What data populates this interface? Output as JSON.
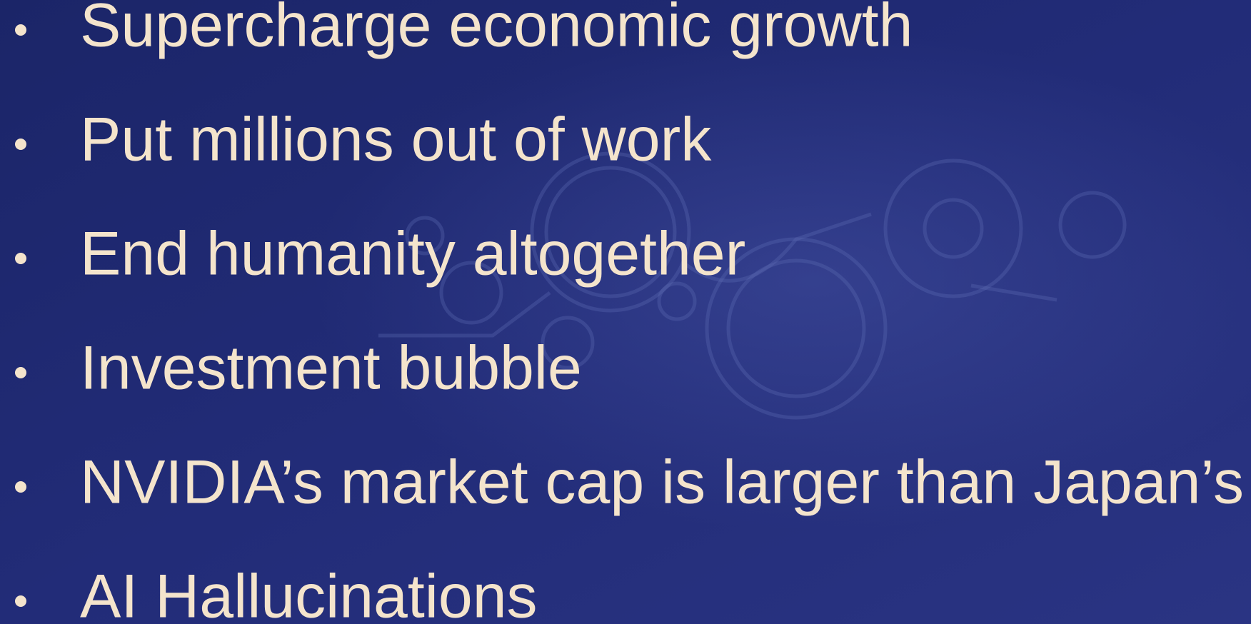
{
  "bullets": [
    "Supercharge economic growth",
    "Put millions out of work",
    "End humanity altogether",
    "Investment bubble",
    "NVIDIA’s market cap is larger than Japan’s GDP",
    "AI Hallucinations"
  ]
}
